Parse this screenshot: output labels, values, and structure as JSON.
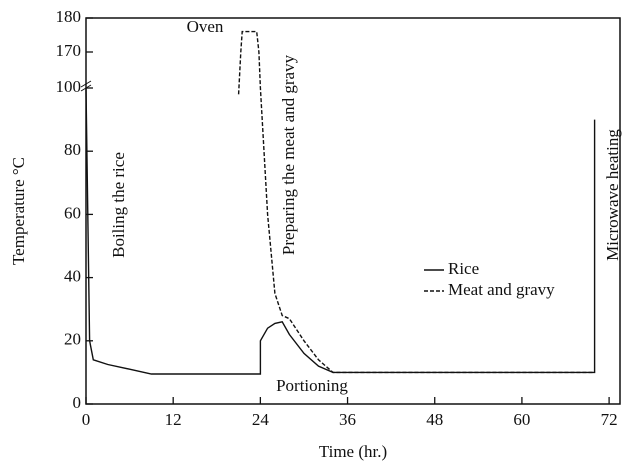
{
  "chart_data": {
    "type": "line",
    "x_label": "Time (hr.)",
    "y_label": "Temperature °C",
    "xlim": [
      0,
      73.5
    ],
    "xticks": [
      0,
      12,
      24,
      36,
      48,
      60,
      72
    ],
    "ylim": [
      0,
      180
    ],
    "ybreak": [
      100,
      170
    ],
    "yticks": [
      0,
      20,
      40,
      60,
      80,
      100,
      170,
      180
    ],
    "annotations": [
      "Boiling the rice",
      "Oven",
      "Preparing the meat and gravy",
      "Portioning",
      "Microwave heating"
    ],
    "series": [
      {
        "name": "Rice",
        "color": "#111111",
        "dash": false,
        "x": [
          0,
          0.5,
          1,
          3,
          6,
          9,
          24,
          24,
          25,
          26,
          27,
          28,
          30,
          32,
          34,
          70,
          70
        ],
        "values": [
          100,
          20,
          14,
          12.5,
          11,
          9.5,
          9.5,
          20,
          24,
          25.5,
          26,
          22,
          16,
          12,
          10,
          10,
          90
        ]
      },
      {
        "name": "Meat and gravy",
        "color": "#111111",
        "dash": true,
        "x": [
          21,
          21.3,
          21.5,
          23.5,
          23.8,
          24,
          25,
          26,
          27,
          28,
          30,
          32,
          34,
          70
        ],
        "values": [
          98,
          170,
          176,
          176,
          170,
          100,
          60,
          35,
          28,
          27,
          20,
          14,
          10,
          10
        ]
      }
    ]
  }
}
